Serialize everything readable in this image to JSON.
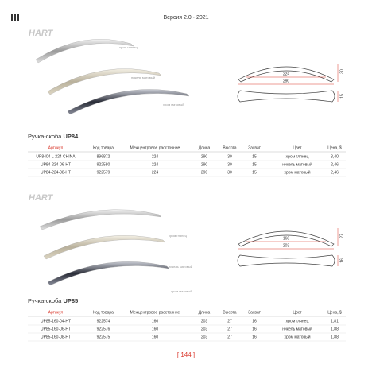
{
  "header": {
    "version": "Версия 2.0 · 2021"
  },
  "sections": [
    {
      "logo": "HART",
      "finish_labels": [
        "хром глянец",
        "никель матовый",
        "хром матовый"
      ],
      "dims": {
        "center": "224",
        "length": "290",
        "height": "30",
        "grip": "15"
      },
      "title_prefix": "Ручка-скоба",
      "title_model": "UP84",
      "table": {
        "columns": [
          "Артикул",
          "Код товара",
          "Межцентровое расстояние",
          "Длина",
          "Высота",
          "Захват",
          "Цвет",
          "Цена, $"
        ],
        "rows": [
          [
            "UP8404 L-224 CHINA",
            "896872",
            "224",
            "290",
            "30",
            "15",
            "хром глянец",
            "3,40"
          ],
          [
            "UP84-224-06-HT",
            "922580",
            "224",
            "290",
            "30",
            "15",
            "никель матовый",
            "2,46"
          ],
          [
            "UP84-224-08-HT",
            "922579",
            "224",
            "290",
            "30",
            "15",
            "хром матовый",
            "2,46"
          ]
        ]
      }
    },
    {
      "logo": "HART",
      "finish_labels": [
        "хром глянец",
        "никель матовый",
        "хром матовый"
      ],
      "dims": {
        "center": "160",
        "length": "203",
        "height": "27",
        "grip": "16"
      },
      "title_prefix": "Ручка-скоба",
      "title_model": "UP85",
      "table": {
        "columns": [
          "Артикул",
          "Код товара",
          "Межцентровое расстояние",
          "Длина",
          "Высота",
          "Захват",
          "Цвет",
          "Цена, $"
        ],
        "rows": [
          [
            "UP85-160-04-HT",
            "922574",
            "160",
            "203",
            "27",
            "16",
            "хром глянец",
            "1,81"
          ],
          [
            "UP85-160-06-HT",
            "922576",
            "160",
            "203",
            "27",
            "16",
            "никель матовый",
            "1,88"
          ],
          [
            "UP85-160-08-HT",
            "922575",
            "160",
            "203",
            "27",
            "16",
            "хром матовый",
            "1,88"
          ]
        ]
      }
    }
  ],
  "page_number": "[ 144 ]"
}
